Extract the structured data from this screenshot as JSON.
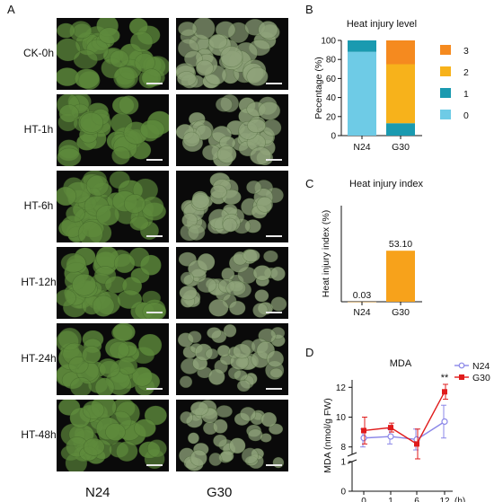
{
  "panels": {
    "A": "A",
    "B": "B",
    "C": "C",
    "D": "D"
  },
  "photo_grid": {
    "columns": [
      "N24",
      "G30"
    ],
    "rows": [
      "CK-0h",
      "HT-1h",
      "HT-6h",
      "HT-12h",
      "HT-24h",
      "HT-48h"
    ],
    "colors": {
      "background": "#0a0a0a",
      "leaf_n24": "#5e8a3c",
      "leaf_g30": "#8fa37a",
      "scale_bar": "#e8e8e8"
    }
  },
  "chart_data": [
    {
      "panel": "B",
      "type": "bar",
      "stacked": true,
      "title": "Heat injury level",
      "xlabel": "",
      "ylabel": "Pecentage (%)",
      "categories": [
        "N24",
        "G30"
      ],
      "ylim": [
        0,
        100
      ],
      "yticks": [
        "0",
        "20",
        "40",
        "60",
        "80",
        "100"
      ],
      "legend_position": "right",
      "series": [
        {
          "name": "0",
          "color": "#6ecbe6",
          "values": [
            88,
            0
          ]
        },
        {
          "name": "1",
          "color": "#1a9ab0",
          "values": [
            12,
            13
          ]
        },
        {
          "name": "2",
          "color": "#f7b21b",
          "values": [
            0,
            62
          ]
        },
        {
          "name": "3",
          "color": "#f58a1f",
          "values": [
            0,
            25
          ]
        }
      ]
    },
    {
      "panel": "C",
      "type": "bar",
      "title": "Heat injury index",
      "xlabel": "",
      "ylabel": "Heat injury index (%)",
      "categories": [
        "N24",
        "G30"
      ],
      "values": [
        0.03,
        53.1
      ],
      "value_labels": [
        "0.03",
        "53.10"
      ],
      "ylim": [
        0,
        100
      ],
      "color": "#f7a21b"
    },
    {
      "panel": "D",
      "type": "line",
      "title": "MDA",
      "xlabel": "(h)",
      "ylabel": "MDA (nmol/g FW)",
      "x": [
        0,
        1,
        6,
        12
      ],
      "xticks": [
        "0",
        "1",
        "6",
        "12"
      ],
      "yticks": [
        "0",
        "1",
        "8",
        "10",
        "12"
      ],
      "ylim_upper": [
        7.5,
        12.5
      ],
      "ylim_lower": [
        0,
        1
      ],
      "axis_break": true,
      "legend_position": "top-right",
      "annotation": "**",
      "series": [
        {
          "name": "N24",
          "color": "#8b87e8",
          "values": [
            8.6,
            8.7,
            8.5,
            9.7
          ],
          "errors": [
            0.6,
            0.5,
            0.7,
            1.1
          ]
        },
        {
          "name": "G30",
          "color": "#e01b1b",
          "values": [
            9.1,
            9.3,
            8.2,
            11.7
          ],
          "errors": [
            0.9,
            0.3,
            1.0,
            0.5
          ]
        }
      ]
    }
  ]
}
